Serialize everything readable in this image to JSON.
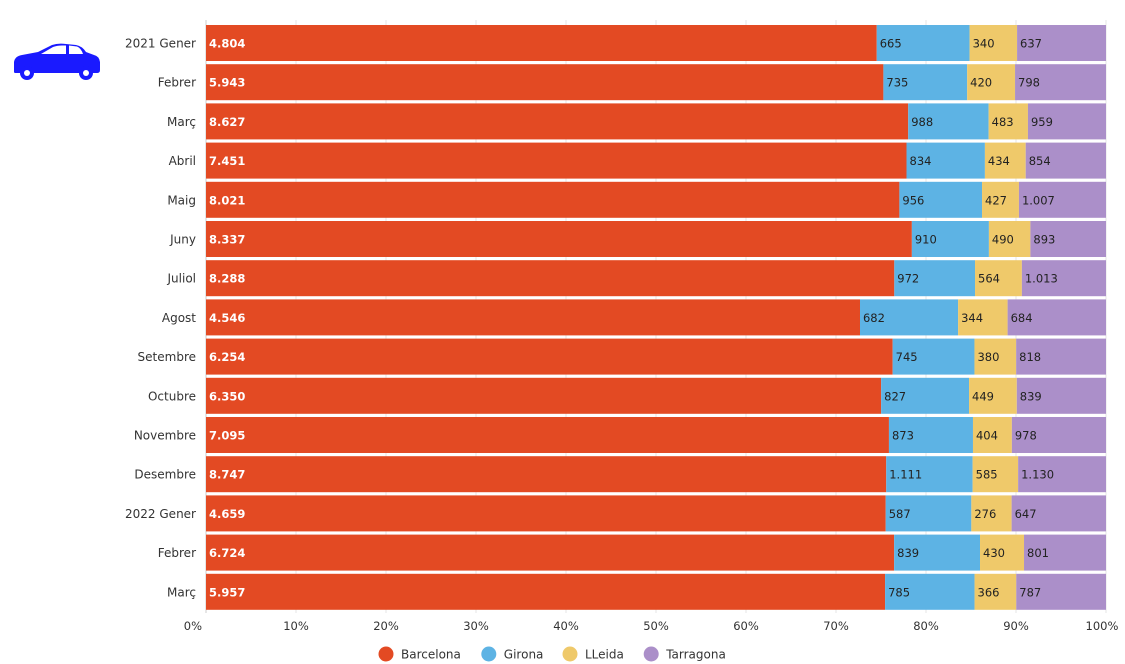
{
  "chart_data": {
    "type": "bar",
    "orientation": "horizontal",
    "stacking": "percent",
    "categories": [
      "2021 Gener",
      "Febrer",
      "Març",
      "Abril",
      "Maig",
      "Juny",
      "Juliol",
      "Agost",
      "Setembre",
      "Octubre",
      "Novembre",
      "Desembre",
      "2022 Gener",
      "Febrer",
      "Març"
    ],
    "series": [
      {
        "name": "Barcelona",
        "color": "#e34a23",
        "values": [
          4804,
          5943,
          8627,
          7451,
          8021,
          8337,
          8288,
          4546,
          6254,
          6350,
          7095,
          8747,
          4659,
          6724,
          5957
        ],
        "labels": [
          "4.804",
          "5.943",
          "8.627",
          "7.451",
          "8.021",
          "8.337",
          "8.288",
          "4.546",
          "6.254",
          "6.350",
          "7.095",
          "8.747",
          "4.659",
          "6.724",
          "5.957"
        ]
      },
      {
        "name": "Girona",
        "color": "#5db3e4",
        "values": [
          665,
          735,
          988,
          834,
          956,
          910,
          972,
          682,
          745,
          827,
          873,
          1111,
          587,
          839,
          785
        ],
        "labels": [
          "665",
          "735",
          "988",
          "834",
          "956",
          "910",
          "972",
          "682",
          "745",
          "827",
          "873",
          "1.111",
          "587",
          "839",
          "785"
        ]
      },
      {
        "name": "LLeida",
        "color": "#efc96a",
        "values": [
          340,
          420,
          483,
          434,
          427,
          490,
          564,
          344,
          380,
          449,
          404,
          585,
          276,
          430,
          366
        ],
        "labels": [
          "340",
          "420",
          "483",
          "434",
          "427",
          "490",
          "564",
          "344",
          "380",
          "449",
          "404",
          "585",
          "276",
          "430",
          "366"
        ]
      },
      {
        "name": "Tarragona",
        "color": "#ab8fc9",
        "values": [
          637,
          798,
          959,
          854,
          1007,
          893,
          1013,
          684,
          818,
          839,
          978,
          1130,
          647,
          801,
          787
        ],
        "labels": [
          "637",
          "798",
          "959",
          "854",
          "1.007",
          "893",
          "1.013",
          "684",
          "818",
          "839",
          "978",
          "1.130",
          "647",
          "801",
          "787"
        ]
      }
    ],
    "x_ticks": [
      "0%",
      "10%",
      "20%",
      "30%",
      "40%",
      "50%",
      "60%",
      "70%",
      "80%",
      "90%",
      "100%"
    ],
    "xlim": [
      0,
      100
    ],
    "grid": true,
    "legend": "bottom-center",
    "icon": "car-icon",
    "icon_color": "#1a1aff"
  }
}
